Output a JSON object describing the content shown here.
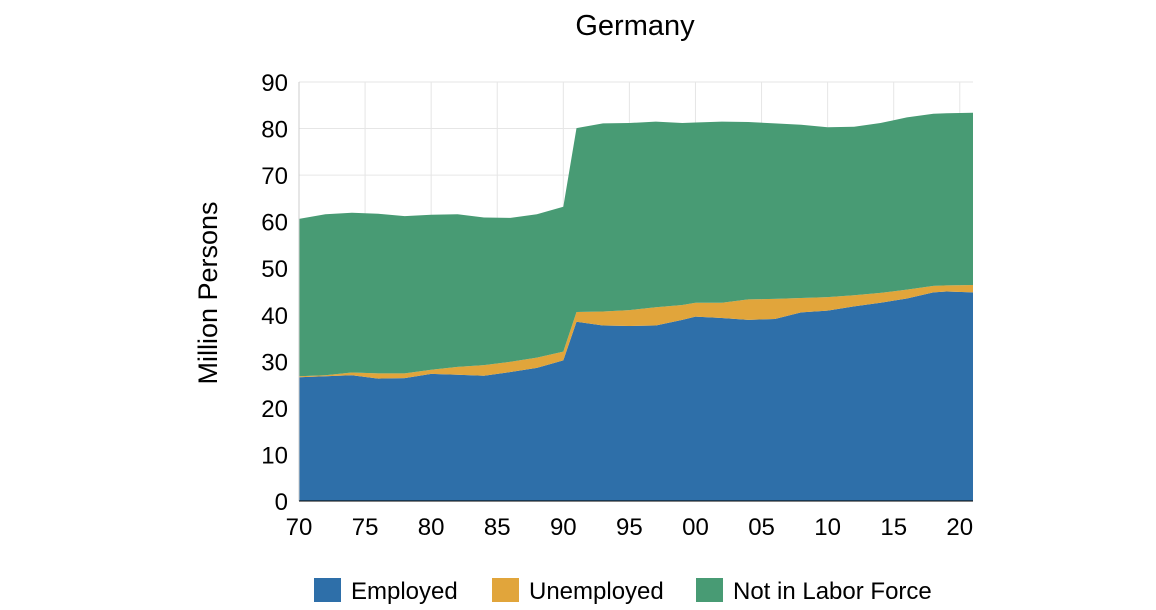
{
  "chart_data": {
    "type": "area",
    "stacked": true,
    "title": "Germany",
    "xlabel": "",
    "ylabel": "Million Persons",
    "ylim": [
      0,
      90
    ],
    "xlim": [
      1970,
      2021
    ],
    "yticks": [
      "0",
      "10",
      "20",
      "30",
      "40",
      "50",
      "60",
      "70",
      "80",
      "90"
    ],
    "xtick_labels": [
      "70",
      "75",
      "80",
      "85",
      "90",
      "95",
      "00",
      "05",
      "10",
      "15",
      "20"
    ],
    "grid": true,
    "legend_position": "bottom",
    "x": [
      1970,
      1972,
      1974,
      1976,
      1978,
      1980,
      1982,
      1984,
      1986,
      1988,
      1990,
      1991,
      1993,
      1995,
      1997,
      1999,
      2000,
      2002,
      2004,
      2006,
      2008,
      2010,
      2012,
      2014,
      2016,
      2018,
      2019,
      2021
    ],
    "series": [
      {
        "name": "Employed",
        "color": "#2e6fa9",
        "values": [
          26.6,
          26.8,
          27.0,
          26.3,
          26.4,
          27.3,
          27.1,
          26.9,
          27.7,
          28.6,
          30.2,
          38.5,
          37.7,
          37.6,
          37.7,
          38.9,
          39.6,
          39.3,
          38.9,
          39.1,
          40.5,
          40.9,
          41.8,
          42.6,
          43.5,
          44.8,
          45.0,
          44.8
        ]
      },
      {
        "name": "Unemployed",
        "color": "#e1a53b",
        "values": [
          0.2,
          0.2,
          0.6,
          1.1,
          1.0,
          0.9,
          1.7,
          2.3,
          2.2,
          2.2,
          1.9,
          2.1,
          3.0,
          3.4,
          3.9,
          3.2,
          3.0,
          3.3,
          4.4,
          4.3,
          3.1,
          2.9,
          2.4,
          2.1,
          1.9,
          1.4,
          1.3,
          1.6
        ]
      },
      {
        "name": "Not in Labor Force",
        "color": "#489b74",
        "values": [
          33.8,
          34.6,
          34.3,
          34.3,
          33.8,
          33.3,
          32.8,
          31.7,
          30.9,
          30.8,
          31.1,
          39.5,
          40.4,
          40.2,
          39.9,
          39.1,
          38.7,
          38.9,
          38.1,
          37.7,
          37.2,
          36.5,
          36.2,
          36.5,
          37.0,
          37.0,
          37.0,
          37.0
        ]
      }
    ]
  }
}
